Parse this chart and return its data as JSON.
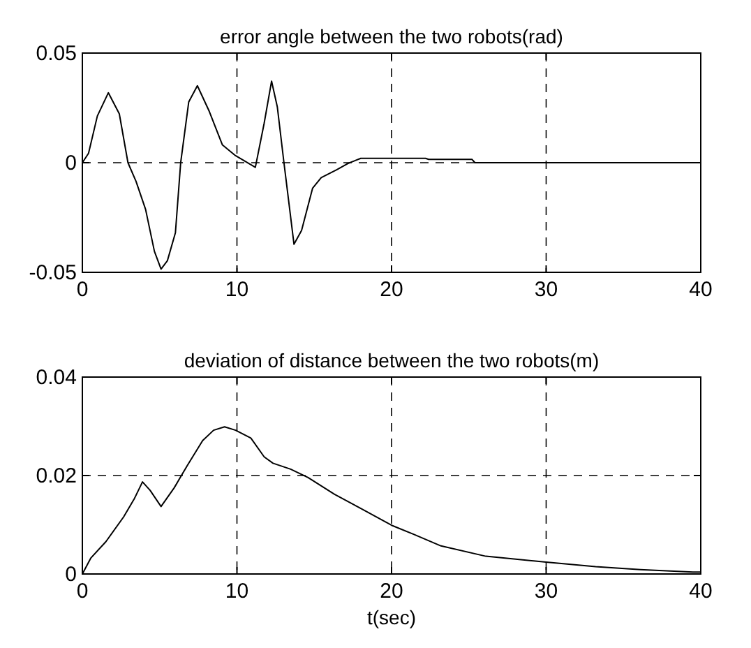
{
  "chart_data": [
    {
      "type": "line",
      "title": "error angle between the two robots(rad)",
      "color": "#000000",
      "grid": true,
      "xlim": [
        0,
        40
      ],
      "ylim": [
        -0.05,
        0.05
      ],
      "xticks": [
        0,
        10,
        20,
        30,
        40
      ],
      "yticks": [
        -0.05,
        0,
        0.05
      ],
      "x": [
        0,
        0.4,
        0.97,
        1.68,
        2.39,
        2.95,
        3.47,
        4.09,
        4.66,
        5.09,
        5.5,
        6.02,
        6.36,
        6.88,
        7.44,
        8.21,
        9.06,
        9.91,
        11.19,
        11.76,
        12.24,
        12.61,
        13.04,
        13.69,
        14.18,
        14.89,
        15.45,
        16.45,
        17.16,
        18.01,
        19.15,
        22.2,
        22.4,
        25.2,
        25.4,
        40
      ],
      "values": [
        0,
        0.0043,
        0.0213,
        0.0319,
        0.0223,
        0,
        -0.0085,
        -0.0213,
        -0.0404,
        -0.0485,
        -0.0447,
        -0.0319,
        0,
        0.0277,
        0.0351,
        0.0234,
        0.0081,
        0.0032,
        -0.0021,
        0.018,
        0.0372,
        0.0255,
        0,
        -0.0372,
        -0.0309,
        -0.0117,
        -0.0068,
        -0.0032,
        -0.0004,
        0.002,
        0.002,
        0.002,
        0.0015,
        0.0015,
        0,
        0
      ]
    },
    {
      "type": "line",
      "title": "deviation of distance between the two robots(m)",
      "xlabel": "t(sec)",
      "color": "#000000",
      "grid": true,
      "xlim": [
        0,
        40
      ],
      "ylim": [
        0,
        0.04
      ],
      "xticks": [
        0,
        10,
        20,
        30,
        40
      ],
      "yticks": [
        0,
        0.02,
        0.04
      ],
      "x": [
        0,
        0.54,
        1.53,
        2.67,
        3.38,
        3.89,
        4.38,
        5.09,
        5.94,
        6.8,
        7.78,
        8.49,
        9.2,
        9.91,
        10.9,
        11.76,
        12.33,
        13.47,
        14.6,
        16.31,
        18.01,
        20,
        21.4,
        23.2,
        26.1,
        30,
        33.2,
        36.1,
        39.5,
        40
      ],
      "values": [
        0,
        0.0032,
        0.0066,
        0.0116,
        0.0154,
        0.0187,
        0.017,
        0.0137,
        0.0175,
        0.0221,
        0.0271,
        0.0292,
        0.0299,
        0.0292,
        0.0276,
        0.0238,
        0.0225,
        0.0213,
        0.0196,
        0.0162,
        0.0133,
        0.0099,
        0.0081,
        0.0057,
        0.0036,
        0.0024,
        0.0015,
        0.0009,
        0.0004,
        0.0004
      ]
    }
  ]
}
